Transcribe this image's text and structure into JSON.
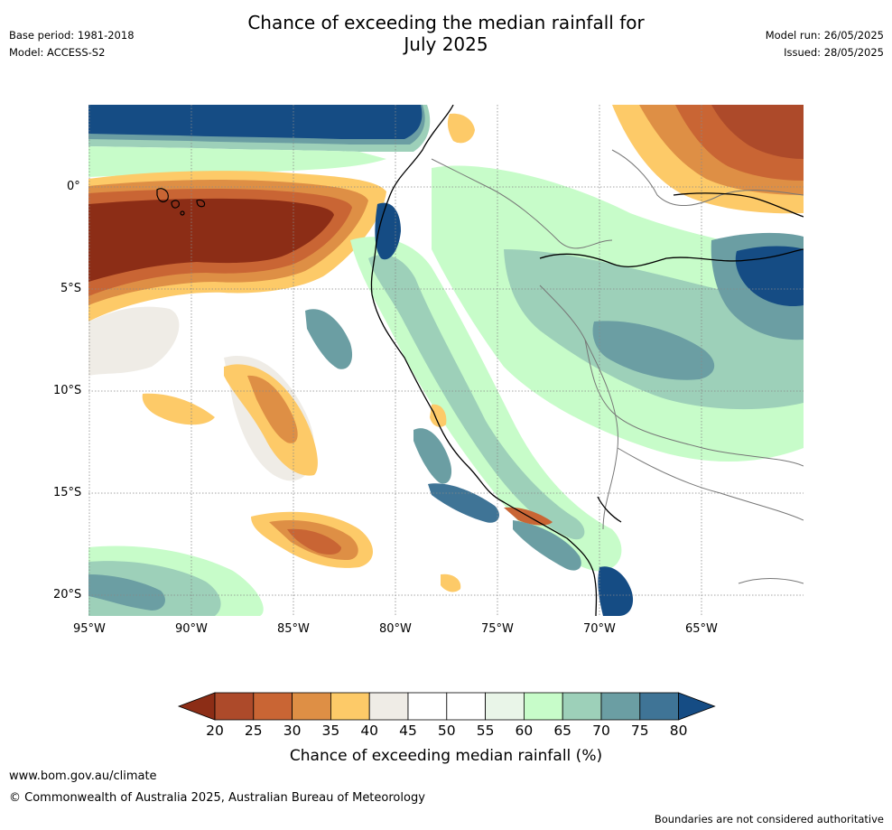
{
  "header": {
    "base_period": "Base period: 1981-2018",
    "model": "Model: ACCESS-S2",
    "title_line1": "Chance of exceeding the median rainfall for",
    "title_line2": "July 2025",
    "model_run": "Model run: 26/05/2025",
    "issued": "Issued: 28/05/2025"
  },
  "map": {
    "lat_labels": [
      "0°",
      "5°S",
      "10°S",
      "15°S",
      "20°S"
    ],
    "lon_labels": [
      "95°W",
      "90°W",
      "85°W",
      "80°W",
      "75°W",
      "70°W",
      "65°W"
    ],
    "gridlines": "dotted"
  },
  "colorbar": {
    "ticks": [
      "20",
      "25",
      "30",
      "35",
      "40",
      "45",
      "50",
      "55",
      "60",
      "65",
      "70",
      "75",
      "80"
    ],
    "colors": [
      "#8c2d16",
      "#ad4a2a",
      "#c96534",
      "#de8f45",
      "#fdca68",
      "#efece6",
      "#ffffff",
      "#ffffff",
      "#e9f5e8",
      "#c7fcc9",
      "#9dd0b9",
      "#6b9ea3",
      "#3f7496",
      "#154c84"
    ],
    "extend": "both",
    "label": "Chance of exceeding median rainfall (%)"
  },
  "footer": {
    "website": "www.bom.gov.au/climate",
    "copyright": "© Commonwealth of Australia 2025, Australian Bureau of Meteorology",
    "disclaimer": "Boundaries are not considered authoritative"
  }
}
